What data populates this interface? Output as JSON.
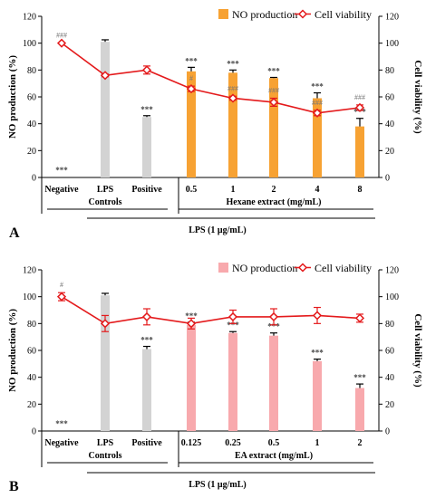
{
  "colors": {
    "control_bar": "#d3d3d3",
    "panel_a_bar": "#f7a233",
    "panel_b_bar": "#f8a9ad",
    "viability": "#e41a1c"
  },
  "chart_data": [
    {
      "type": "bar",
      "panel_label": "A",
      "categories": [
        "Negative",
        "LPS",
        "Positive",
        "0.5",
        "1",
        "2",
        "4",
        "8"
      ],
      "group_labels": {
        "controls": "Controls",
        "extract": "Hexane extract (mg/mL)",
        "treatment": "LPS (1 μg/mL)"
      },
      "ylabel": "NO production (%)",
      "y2label": "Cell viability (%)",
      "ylim": [
        0,
        120
      ],
      "y2lim": [
        0,
        120
      ],
      "yticks": [
        "0",
        "20",
        "40",
        "60",
        "80",
        "100",
        "120"
      ],
      "legend": {
        "bars": "NO production",
        "line": "Cell viability",
        "placement": "top-right"
      },
      "series": [
        {
          "name": "NO production",
          "kind": "bar",
          "values": [
            0,
            101,
            45,
            79,
            78,
            74,
            59,
            38
          ],
          "errors": [
            0,
            1.5,
            1,
            3,
            2,
            0.5,
            4,
            6
          ],
          "significance": [
            "***",
            "",
            "***",
            "***",
            "***",
            "***",
            "***",
            "***"
          ]
        },
        {
          "name": "Cell viability",
          "kind": "line",
          "values": [
            100,
            76,
            80,
            66,
            59,
            56,
            48,
            52
          ],
          "errors": [
            0,
            1,
            3,
            2,
            1.5,
            3,
            2,
            2
          ],
          "annotations": [
            "###",
            "",
            "",
            "#",
            "###",
            "###",
            "###",
            "###"
          ]
        }
      ]
    },
    {
      "type": "bar",
      "panel_label": "B",
      "categories": [
        "Negative",
        "LPS",
        "Positive",
        "0.125",
        "0.25",
        "0.5",
        "1",
        "2"
      ],
      "group_labels": {
        "controls": "Controls",
        "extract": "EA extract (mg/mL)",
        "treatment": "LPS (1 μg/mL)"
      },
      "ylabel": "NO production (%)",
      "y2label": "Cell viability (%)",
      "ylim": [
        0,
        120
      ],
      "y2lim": [
        0,
        120
      ],
      "yticks": [
        "0",
        "20",
        "40",
        "60",
        "80",
        "100",
        "120"
      ],
      "legend": {
        "bars": "NO production",
        "line": "Cell viability",
        "placement": "top-right"
      },
      "series": [
        {
          "name": "NO production",
          "kind": "bar",
          "values": [
            0,
            101,
            61,
            79,
            73,
            71,
            52,
            32
          ],
          "errors": [
            0,
            1.5,
            2,
            2,
            1,
            2,
            1.5,
            3
          ],
          "significance": [
            "***",
            "",
            "***",
            "***",
            "***",
            "***",
            "***",
            "***"
          ]
        },
        {
          "name": "Cell viability",
          "kind": "line",
          "values": [
            100,
            80,
            85,
            80,
            85,
            85,
            86,
            84
          ],
          "errors": [
            3,
            6,
            6,
            4,
            5,
            6,
            6,
            3
          ],
          "annotations": [
            "#",
            "",
            "",
            "",
            "",
            "",
            "",
            ""
          ]
        }
      ]
    }
  ]
}
